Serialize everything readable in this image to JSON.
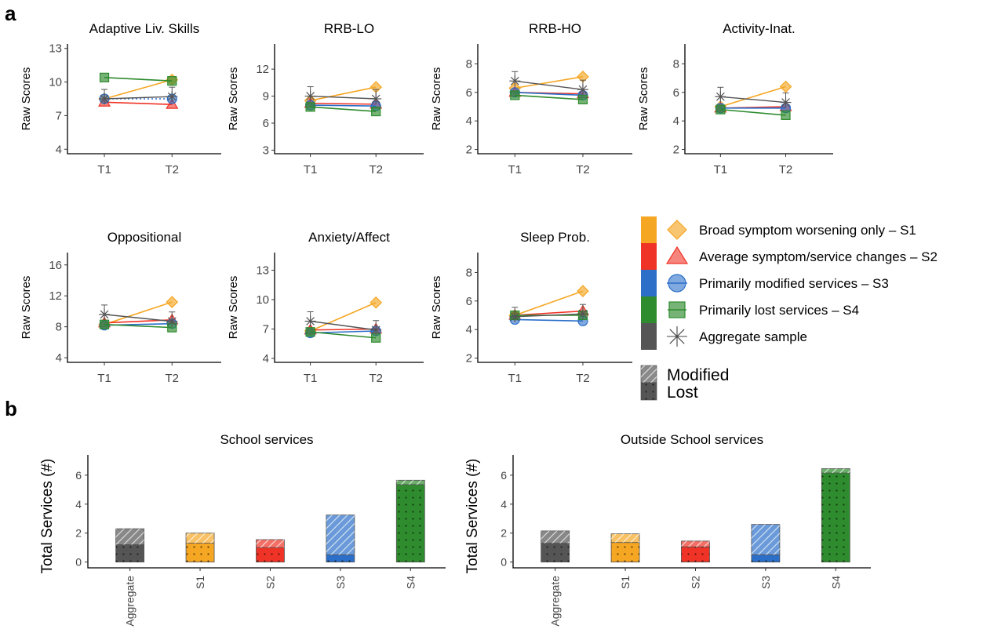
{
  "panel_labels": {
    "a": "a",
    "b": "b"
  },
  "colors": {
    "S1": "#F5A623",
    "S2": "#EF3326",
    "S3": "#2B6FC9",
    "S4": "#2E8B2E",
    "Aggregate": "#555555"
  },
  "legend": {
    "items": [
      {
        "key": "S1",
        "label": "Broad symptom worsening only – S1",
        "marker": "diamond"
      },
      {
        "key": "S2",
        "label": "Average symptom/service changes – S2",
        "marker": "triangle"
      },
      {
        "key": "S3",
        "label": "Primarily modified services – S3",
        "marker": "circle"
      },
      {
        "key": "S4",
        "label": "Primarily lost services – S4",
        "marker": "square"
      },
      {
        "key": "Aggregate",
        "label": "Aggregate sample",
        "marker": "star"
      }
    ],
    "pattern_items": [
      {
        "key": "modified",
        "label": "Modified",
        "pattern": "hatch"
      },
      {
        "key": "lost",
        "label": "Lost",
        "pattern": "dots"
      }
    ]
  },
  "chart_data": [
    {
      "type": "line",
      "title": "Adaptive Liv. Skills",
      "ylabel": "Raw Scores",
      "x": [
        "T1",
        "T2"
      ],
      "yticks": [
        4,
        7,
        10,
        13
      ],
      "ylim": [
        3.6,
        13.4
      ],
      "series": [
        {
          "name": "S1",
          "values": [
            8.5,
            10.2
          ]
        },
        {
          "name": "S2",
          "values": [
            8.2,
            8.0
          ]
        },
        {
          "name": "S3",
          "values": [
            8.5,
            8.5
          ]
        },
        {
          "name": "S4",
          "values": [
            10.4,
            10.1
          ]
        },
        {
          "name": "Aggregate",
          "values": [
            8.5,
            8.7
          ]
        }
      ]
    },
    {
      "type": "line",
      "title": "RRB-LO",
      "ylabel": "Raw Scores",
      "x": [
        "T1",
        "T2"
      ],
      "yticks": [
        3,
        6,
        9,
        12
      ],
      "ylim": [
        2.6,
        14.8
      ],
      "series": [
        {
          "name": "S1",
          "values": [
            8.5,
            10.0
          ]
        },
        {
          "name": "S2",
          "values": [
            8.2,
            8.1
          ]
        },
        {
          "name": "S3",
          "values": [
            8.0,
            7.9
          ]
        },
        {
          "name": "S4",
          "values": [
            7.8,
            7.3
          ]
        },
        {
          "name": "Aggregate",
          "values": [
            9.0,
            8.7
          ]
        }
      ]
    },
    {
      "type": "line",
      "title": "RRB-HO",
      "ylabel": "Raw Scores",
      "x": [
        "T1",
        "T2"
      ],
      "yticks": [
        2,
        4,
        6,
        8
      ],
      "ylim": [
        1.7,
        9.4
      ],
      "series": [
        {
          "name": "S1",
          "values": [
            6.3,
            7.1
          ]
        },
        {
          "name": "S2",
          "values": [
            6.0,
            5.9
          ]
        },
        {
          "name": "S3",
          "values": [
            6.0,
            5.8
          ]
        },
        {
          "name": "S4",
          "values": [
            5.8,
            5.5
          ]
        },
        {
          "name": "Aggregate",
          "values": [
            6.8,
            6.2
          ]
        }
      ]
    },
    {
      "type": "line",
      "title": "Activity-Inat.",
      "ylabel": "Raw Scores",
      "x": [
        "T1",
        "T2"
      ],
      "yticks": [
        2,
        4,
        6,
        8
      ],
      "ylim": [
        1.7,
        9.4
      ],
      "series": [
        {
          "name": "S1",
          "values": [
            5.0,
            6.4
          ]
        },
        {
          "name": "S2",
          "values": [
            4.9,
            5.0
          ]
        },
        {
          "name": "S3",
          "values": [
            4.9,
            4.9
          ]
        },
        {
          "name": "S4",
          "values": [
            4.8,
            4.4
          ]
        },
        {
          "name": "Aggregate",
          "values": [
            5.7,
            5.3
          ]
        }
      ]
    },
    {
      "type": "line",
      "title": "Oppositional",
      "ylabel": "Raw Scores",
      "x": [
        "T1",
        "T2"
      ],
      "yticks": [
        4,
        8,
        12,
        16
      ],
      "ylim": [
        3.4,
        17.6
      ],
      "series": [
        {
          "name": "S1",
          "values": [
            8.3,
            11.2
          ]
        },
        {
          "name": "S2",
          "values": [
            8.5,
            8.9
          ]
        },
        {
          "name": "S3",
          "values": [
            8.2,
            8.4
          ]
        },
        {
          "name": "S4",
          "values": [
            8.3,
            7.9
          ]
        },
        {
          "name": "Aggregate",
          "values": [
            9.6,
            8.7
          ]
        }
      ]
    },
    {
      "type": "line",
      "title": "Anxiety/Affect",
      "ylabel": "Raw Scores",
      "x": [
        "T1",
        "T2"
      ],
      "yticks": [
        4,
        7,
        10,
        13
      ],
      "ylim": [
        3.6,
        14.8
      ],
      "series": [
        {
          "name": "S1",
          "values": [
            6.8,
            9.7
          ]
        },
        {
          "name": "S2",
          "values": [
            6.9,
            7.0
          ]
        },
        {
          "name": "S3",
          "values": [
            6.6,
            6.8
          ]
        },
        {
          "name": "S4",
          "values": [
            6.7,
            6.1
          ]
        },
        {
          "name": "Aggregate",
          "values": [
            7.8,
            6.9
          ]
        }
      ]
    },
    {
      "type": "line",
      "title": "Sleep Prob.",
      "ylabel": "Raw Scores",
      "x": [
        "T1",
        "T2"
      ],
      "yticks": [
        2,
        4,
        6,
        8
      ],
      "ylim": [
        1.7,
        9.4
      ],
      "series": [
        {
          "name": "S1",
          "values": [
            5.0,
            6.7
          ]
        },
        {
          "name": "S2",
          "values": [
            5.0,
            5.3
          ]
        },
        {
          "name": "S3",
          "values": [
            4.7,
            4.6
          ]
        },
        {
          "name": "S4",
          "values": [
            5.0,
            5.0
          ]
        },
        {
          "name": "Aggregate",
          "values": [
            4.9,
            5.1
          ]
        }
      ]
    },
    {
      "type": "bar",
      "stacked": true,
      "title": "School services",
      "ylabel": "Total Services (#)",
      "categories": [
        "Aggregate",
        "S1",
        "S2",
        "S3",
        "S4"
      ],
      "yticks": [
        0,
        2,
        4,
        6
      ],
      "ylim": [
        -0.4,
        7.4
      ],
      "series": [
        {
          "name": "Lost",
          "values": [
            1.2,
            1.3,
            1.0,
            0.5,
            5.35
          ]
        },
        {
          "name": "Modified",
          "values": [
            1.1,
            0.7,
            0.55,
            2.75,
            0.3
          ]
        }
      ]
    },
    {
      "type": "bar",
      "stacked": true,
      "title": "Outside School services",
      "ylabel": "Total Services (#)",
      "categories": [
        "Aggregate",
        "S1",
        "S2",
        "S3",
        "S4"
      ],
      "yticks": [
        0,
        2,
        4,
        6
      ],
      "ylim": [
        -0.4,
        7.4
      ],
      "series": [
        {
          "name": "Lost",
          "values": [
            1.3,
            1.35,
            1.05,
            0.5,
            6.15
          ]
        },
        {
          "name": "Modified",
          "values": [
            0.85,
            0.6,
            0.4,
            2.1,
            0.3
          ]
        }
      ]
    }
  ]
}
